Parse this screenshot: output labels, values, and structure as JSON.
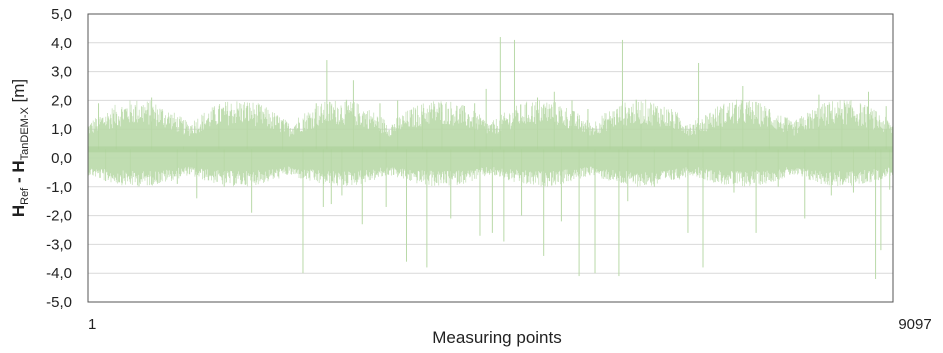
{
  "chart_data": {
    "type": "line",
    "xlabel": "Measuring points",
    "ylabel_main": "H",
    "ylabel_sub1": "Ref",
    "ylabel_mid": " - H",
    "ylabel_sub2": "TanDEM-X",
    "ylabel_unit": " [m]",
    "x_tick_labels": [
      "1",
      "9097"
    ],
    "x_range": [
      1,
      9097
    ],
    "ylim": [
      -5,
      5
    ],
    "y_tick_labels": [
      "5,0",
      "4,0",
      "3,0",
      "2,0",
      "1,0",
      "0,0",
      "-1,0",
      "-2,0",
      "-3,0",
      "-4,0",
      "-5,0"
    ],
    "grid": "horizontal",
    "series": [
      {
        "color": "#b9d9a8",
        "n_points": 9097,
        "typical_range": [
          -0.7,
          1.5
        ],
        "spikes": [
          {
            "x": 120,
            "y": 1.9
          },
          {
            "x": 200,
            "y": -0.8
          },
          {
            "x": 320,
            "y": 1.2
          },
          {
            "x": 480,
            "y": -0.6
          },
          {
            "x": 720,
            "y": 2.1
          },
          {
            "x": 1010,
            "y": -0.9
          },
          {
            "x": 1080,
            "y": 0.4
          },
          {
            "x": 1230,
            "y": -1.4
          },
          {
            "x": 1480,
            "y": 1.7
          },
          {
            "x": 1540,
            "y": -1.0
          },
          {
            "x": 1800,
            "y": 1.8
          },
          {
            "x": 1850,
            "y": -1.9
          },
          {
            "x": 2200,
            "y": 1.3
          },
          {
            "x": 2430,
            "y": -4.0
          },
          {
            "x": 2580,
            "y": 1.9
          },
          {
            "x": 2660,
            "y": -1.7
          },
          {
            "x": 2700,
            "y": 3.4
          },
          {
            "x": 2750,
            "y": -1.6
          },
          {
            "x": 2870,
            "y": -1.3
          },
          {
            "x": 3000,
            "y": 2.7
          },
          {
            "x": 3100,
            "y": -2.3
          },
          {
            "x": 3300,
            "y": 1.9
          },
          {
            "x": 3370,
            "y": -1.7
          },
          {
            "x": 3500,
            "y": 2.0
          },
          {
            "x": 3600,
            "y": -3.6
          },
          {
            "x": 3780,
            "y": 1.5
          },
          {
            "x": 3830,
            "y": -3.8
          },
          {
            "x": 4000,
            "y": 1.6
          },
          {
            "x": 4100,
            "y": -2.1
          },
          {
            "x": 4370,
            "y": 1.9
          },
          {
            "x": 4430,
            "y": -2.7
          },
          {
            "x": 4500,
            "y": 2.4
          },
          {
            "x": 4570,
            "y": -2.6
          },
          {
            "x": 4660,
            "y": 4.2
          },
          {
            "x": 4700,
            "y": -2.9
          },
          {
            "x": 4820,
            "y": 4.1
          },
          {
            "x": 4900,
            "y": -2.0
          },
          {
            "x": 5080,
            "y": 2.1
          },
          {
            "x": 5150,
            "y": -3.4
          },
          {
            "x": 5270,
            "y": 2.3
          },
          {
            "x": 5350,
            "y": -2.2
          },
          {
            "x": 5470,
            "y": 2.0
          },
          {
            "x": 5550,
            "y": -4.1
          },
          {
            "x": 5650,
            "y": 1.7
          },
          {
            "x": 5730,
            "y": -4.0
          },
          {
            "x": 5900,
            "y": 1.3
          },
          {
            "x": 6000,
            "y": -4.1
          },
          {
            "x": 6040,
            "y": 4.1
          },
          {
            "x": 6100,
            "y": -1.5
          },
          {
            "x": 6250,
            "y": 1.2
          },
          {
            "x": 6400,
            "y": -1.0
          },
          {
            "x": 6600,
            "y": 1.6
          },
          {
            "x": 6780,
            "y": -2.6
          },
          {
            "x": 6900,
            "y": 3.3
          },
          {
            "x": 6950,
            "y": -3.8
          },
          {
            "x": 7150,
            "y": 1.2
          },
          {
            "x": 7300,
            "y": -1.2
          },
          {
            "x": 7400,
            "y": 2.5
          },
          {
            "x": 7550,
            "y": -2.6
          },
          {
            "x": 7700,
            "y": 1.7
          },
          {
            "x": 7800,
            "y": -1.0
          },
          {
            "x": 7900,
            "y": 1.4
          },
          {
            "x": 8100,
            "y": -2.1
          },
          {
            "x": 8260,
            "y": 2.2
          },
          {
            "x": 8400,
            "y": -1.3
          },
          {
            "x": 8520,
            "y": 1.7
          },
          {
            "x": 8650,
            "y": -1.2
          },
          {
            "x": 8820,
            "y": 2.3
          },
          {
            "x": 8900,
            "y": -4.2
          },
          {
            "x": 8960,
            "y": -3.2
          },
          {
            "x": 9020,
            "y": 1.8
          },
          {
            "x": 9060,
            "y": -1.1
          }
        ]
      }
    ]
  }
}
